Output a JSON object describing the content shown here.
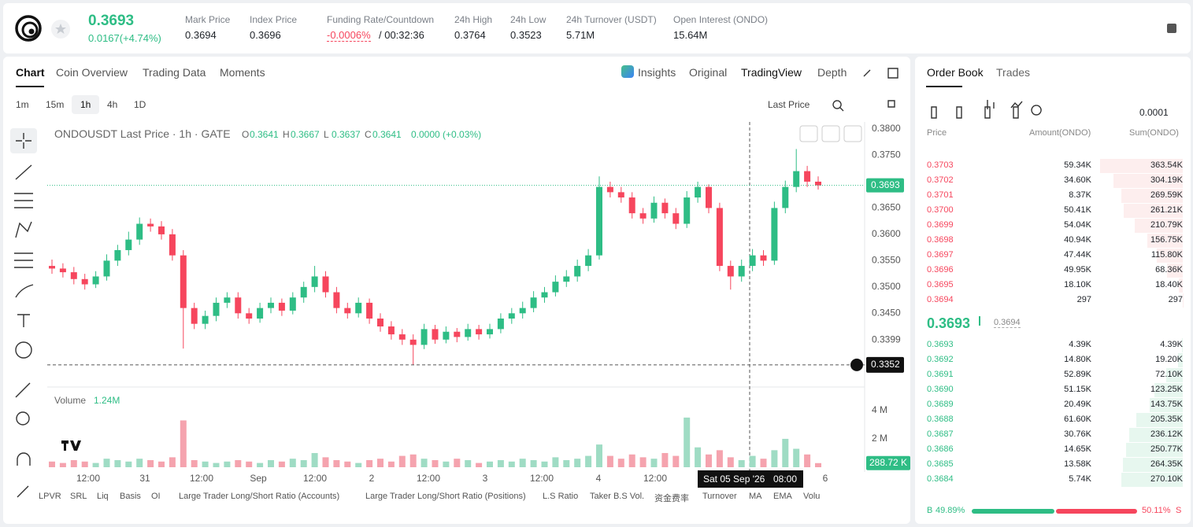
{
  "header": {
    "price": "0.3693",
    "change": "0.0167(+4.74%)",
    "stats": [
      {
        "label": "Mark Price",
        "value": "0.3694"
      },
      {
        "label": "Index Price",
        "value": "0.3696"
      },
      {
        "label": "Funding Rate/Countdown",
        "value": "-0.0006%",
        "extra": "/ 00:32:36"
      },
      {
        "label": "24h High",
        "value": "0.3764"
      },
      {
        "label": "24h Low",
        "value": "0.3523"
      },
      {
        "label": "24h Turnover (USDT)",
        "value": "5.71M"
      },
      {
        "label": "Open Interest (ONDO)",
        "value": "15.64M"
      }
    ]
  },
  "tabs": {
    "left": [
      "Chart",
      "Coin Overview",
      "Trading Data",
      "Moments"
    ],
    "right": [
      "Insights",
      "Original",
      "TradingView",
      "Depth"
    ]
  },
  "toolbar": {
    "intervals": [
      "1m",
      "15m",
      "1h",
      "4h",
      "1D"
    ],
    "price_type": "Last Price"
  },
  "chart": {
    "type": "candlestick",
    "legend": "ONDOUSDT Last Price · 1h · GATE",
    "ohlc": [
      {
        "key": "O",
        "value": "0.3641"
      },
      {
        "key": "H",
        "value": "0.3667"
      },
      {
        "key": "L",
        "value": "0.3637"
      },
      {
        "key": "C",
        "value": "0.3641"
      }
    ],
    "change": "0.0000 (+0.03%)",
    "ylim": [
      0.3313,
      0.3812
    ],
    "yticks": [
      {
        "value": 0.38,
        "label": "0.3800"
      },
      {
        "value": 0.375,
        "label": "0.3750"
      },
      {
        "value": 0.365,
        "label": "0.3650"
      },
      {
        "value": 0.36,
        "label": "0.3600"
      },
      {
        "value": 0.355,
        "label": "0.3550"
      },
      {
        "value": 0.35,
        "label": "0.3500"
      },
      {
        "value": 0.345,
        "label": "0.3450"
      },
      0.3399
    ],
    "last_price": 0.3693,
    "crosshair": {
      "date": "Sat 05 Sep '26",
      "time": "08:00",
      "price": 0.3352
    },
    "x_labels": [
      "12:00",
      "31",
      "12:00",
      "Sep",
      "12:00",
      "2",
      "12:00",
      "3",
      "12:00",
      "4",
      "12:00",
      null,
      null,
      "6"
    ],
    "candles": [
      [
        0.354,
        0.3552,
        0.3525,
        0.3535
      ],
      [
        0.3535,
        0.3545,
        0.3518,
        0.3528
      ],
      [
        0.3528,
        0.3538,
        0.3505,
        0.3515
      ],
      [
        0.3515,
        0.3525,
        0.3495,
        0.3505
      ],
      [
        0.3505,
        0.353,
        0.3498,
        0.352
      ],
      [
        0.352,
        0.3562,
        0.3512,
        0.355
      ],
      [
        0.355,
        0.358,
        0.354,
        0.357
      ],
      [
        0.357,
        0.3605,
        0.356,
        0.359
      ],
      [
        0.359,
        0.3632,
        0.358,
        0.362
      ],
      [
        0.362,
        0.363,
        0.3605,
        0.3615
      ],
      [
        0.3615,
        0.3625,
        0.359,
        0.36
      ],
      [
        0.36,
        0.361,
        0.355,
        0.356
      ],
      [
        0.356,
        0.357,
        0.3383,
        0.346
      ],
      [
        0.346,
        0.347,
        0.342,
        0.343
      ],
      [
        0.343,
        0.3455,
        0.342,
        0.3445
      ],
      [
        0.3445,
        0.348,
        0.3435,
        0.347
      ],
      [
        0.347,
        0.349,
        0.346,
        0.348
      ],
      [
        0.348,
        0.349,
        0.344,
        0.345
      ],
      [
        0.345,
        0.346,
        0.343,
        0.344
      ],
      [
        0.344,
        0.347,
        0.3432,
        0.346
      ],
      [
        0.346,
        0.348,
        0.345,
        0.347
      ],
      [
        0.347,
        0.3478,
        0.3445,
        0.3455
      ],
      [
        0.3455,
        0.349,
        0.3448,
        0.348
      ],
      [
        0.348,
        0.351,
        0.347,
        0.35
      ],
      [
        0.35,
        0.354,
        0.349,
        0.352
      ],
      [
        0.352,
        0.353,
        0.348,
        0.349
      ],
      [
        0.349,
        0.35,
        0.345,
        0.346
      ],
      [
        0.346,
        0.347,
        0.344,
        0.345
      ],
      [
        0.345,
        0.348,
        0.3442,
        0.347
      ],
      [
        0.347,
        0.3478,
        0.343,
        0.344
      ],
      [
        0.344,
        0.345,
        0.3415,
        0.3425
      ],
      [
        0.3425,
        0.3435,
        0.34,
        0.341
      ],
      [
        0.341,
        0.342,
        0.339,
        0.34
      ],
      [
        0.34,
        0.341,
        0.3352,
        0.339
      ],
      [
        0.339,
        0.343,
        0.3382,
        0.342
      ],
      [
        0.342,
        0.3428,
        0.3392,
        0.34
      ],
      [
        0.34,
        0.3425,
        0.3393,
        0.3415
      ],
      [
        0.3415,
        0.3422,
        0.3395,
        0.3405
      ],
      [
        0.3405,
        0.343,
        0.3398,
        0.342
      ],
      [
        0.342,
        0.3428,
        0.34,
        0.341
      ],
      [
        0.341,
        0.343,
        0.3402,
        0.342
      ],
      [
        0.342,
        0.345,
        0.3412,
        0.344
      ],
      [
        0.344,
        0.346,
        0.343,
        0.345
      ],
      [
        0.345,
        0.3472,
        0.344,
        0.346
      ],
      [
        0.346,
        0.3492,
        0.3452,
        0.348
      ],
      [
        0.348,
        0.35,
        0.347,
        0.349
      ],
      [
        0.349,
        0.3522,
        0.3482,
        0.351
      ],
      [
        0.351,
        0.3532,
        0.35,
        0.352
      ],
      [
        0.352,
        0.3552,
        0.351,
        0.354
      ],
      [
        0.354,
        0.3572,
        0.353,
        0.356
      ],
      [
        0.356,
        0.371,
        0.3552,
        0.369
      ],
      [
        0.369,
        0.37,
        0.367,
        0.368
      ],
      [
        0.368,
        0.369,
        0.366,
        0.367
      ],
      [
        0.367,
        0.368,
        0.363,
        0.364
      ],
      [
        0.364,
        0.365,
        0.362,
        0.363
      ],
      [
        0.363,
        0.3672,
        0.3622,
        0.366
      ],
      [
        0.366,
        0.3668,
        0.363,
        0.364
      ],
      [
        0.364,
        0.365,
        0.361,
        0.362
      ],
      [
        0.362,
        0.3682,
        0.3612,
        0.367
      ],
      [
        0.367,
        0.37,
        0.366,
        0.369
      ],
      [
        0.369,
        0.3695,
        0.364,
        0.365
      ],
      [
        0.365,
        0.366,
        0.353,
        0.354
      ],
      [
        0.354,
        0.355,
        0.3495,
        0.352
      ],
      [
        0.352,
        0.3552,
        0.351,
        0.354
      ],
      [
        0.354,
        0.3572,
        0.353,
        0.356
      ],
      [
        0.356,
        0.357,
        0.354,
        0.355
      ],
      [
        0.355,
        0.3662,
        0.3542,
        0.365
      ],
      [
        0.365,
        0.3702,
        0.364,
        0.369
      ],
      [
        0.369,
        0.3762,
        0.368,
        0.372
      ],
      [
        0.372,
        0.373,
        0.369,
        0.37
      ],
      [
        0.37,
        0.371,
        0.3685,
        0.3693
      ]
    ]
  },
  "volume": {
    "label": "Volume",
    "current": "1.24M",
    "ylim": [
      0,
      5.6
    ],
    "yticks": [
      {
        "value": 4,
        "label": "4 M"
      },
      {
        "value": 2,
        "label": "2 M"
      }
    ],
    "values": [
      0.4,
      0.3,
      0.5,
      0.4,
      0.3,
      0.6,
      0.5,
      0.4,
      0.6,
      0.5,
      0.4,
      0.7,
      3.3,
      0.5,
      0.4,
      0.3,
      0.4,
      0.5,
      0.4,
      0.3,
      0.5,
      0.4,
      0.6,
      0.5,
      1.0,
      0.7,
      0.5,
      0.4,
      0.3,
      0.5,
      0.6,
      0.4,
      0.8,
      0.9,
      0.6,
      0.5,
      0.4,
      0.6,
      0.5,
      0.3,
      0.4,
      0.5,
      0.4,
      0.6,
      0.5,
      0.4,
      0.7,
      0.5,
      0.6,
      0.8,
      1.6,
      0.8,
      0.6,
      0.9,
      0.7,
      0.6,
      1.0,
      0.8,
      3.5,
      1.4,
      0.9,
      1.2,
      0.7,
      0.5,
      0.8,
      0.6,
      1.2,
      2.0,
      1.3,
      0.9,
      0.29
    ],
    "last": {
      "value": 0.28872,
      "label": "288.72 K"
    }
  },
  "indicators": [
    "LPVR",
    "SRL",
    "Liq",
    "Basis",
    "OI",
    "Large Trader Long/Short Ratio (Accounts)",
    "Large Trader Long/Short Ratio (Positions)",
    "L.S Ratio",
    "Taker B.S Vol.",
    "资金费率",
    "Turnover",
    "MA",
    "EMA",
    "Volu"
  ],
  "orderbook": {
    "tabs": [
      "Order Book",
      "Trades"
    ],
    "precision": "0.0001",
    "columns": [
      "Price",
      "Amount(ONDO)",
      "Sum(ONDO)"
    ],
    "asks": [
      [
        "0.3703",
        "59.34K",
        "363.54K"
      ],
      [
        "0.3702",
        "34.60K",
        "304.19K"
      ],
      [
        "0.3701",
        "8.37K",
        "269.59K"
      ],
      [
        "0.3700",
        "50.41K",
        "261.21K"
      ],
      [
        "0.3699",
        "54.04K",
        "210.79K"
      ],
      [
        "0.3698",
        "40.94K",
        "156.75K"
      ],
      [
        "0.3697",
        "47.44K",
        "115.80K"
      ],
      [
        "0.3696",
        "49.95K",
        "68.36K"
      ],
      [
        "0.3695",
        "18.10K",
        "18.40K"
      ],
      [
        "0.3694",
        "297",
        "297"
      ]
    ],
    "last": "0.3693",
    "mark": "0.3694",
    "bids": [
      [
        "0.3693",
        "4.39K",
        "4.39K"
      ],
      [
        "0.3692",
        "14.80K",
        "19.20K"
      ],
      [
        "0.3691",
        "52.89K",
        "72.10K"
      ],
      [
        "0.3690",
        "51.15K",
        "123.25K"
      ],
      [
        "0.3689",
        "20.49K",
        "143.75K"
      ],
      [
        "0.3688",
        "61.60K",
        "205.35K"
      ],
      [
        "0.3687",
        "30.76K",
        "236.12K"
      ],
      [
        "0.3686",
        "14.65K",
        "250.77K"
      ],
      [
        "0.3685",
        "13.58K",
        "264.35K"
      ],
      [
        "0.3684",
        "5.74K",
        "270.10K"
      ]
    ],
    "buy_label": "B",
    "buy_pct": 49.89,
    "buy_text": "49.89%",
    "sell_label": "S",
    "sell_pct": 50.11,
    "sell_text": "50.11%"
  }
}
